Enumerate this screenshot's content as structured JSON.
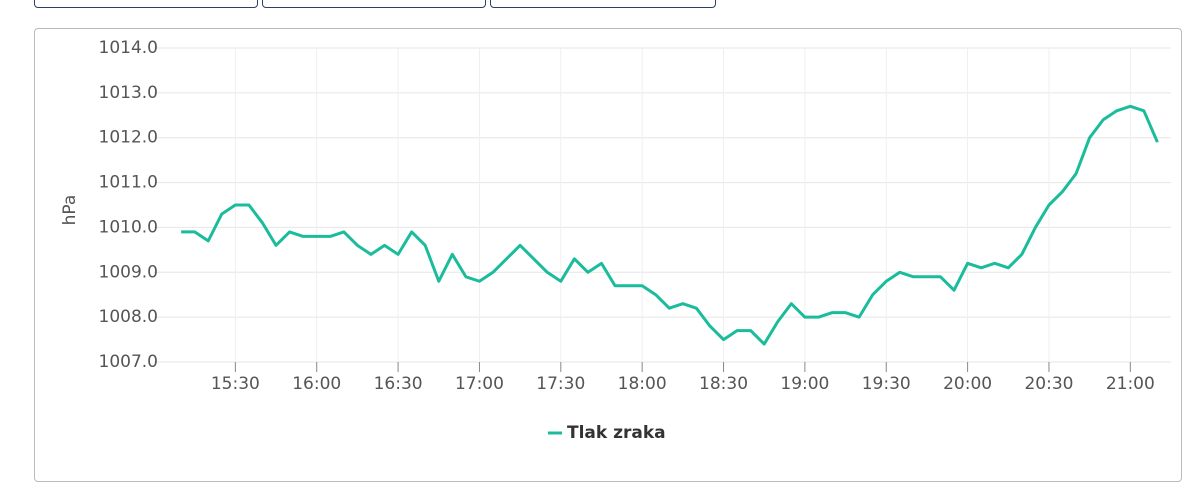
{
  "chart_data": {
    "type": "line",
    "y_label": "hPa",
    "x": [
      "15:10",
      "15:15",
      "15:20",
      "15:25",
      "15:30",
      "15:35",
      "15:40",
      "15:45",
      "15:50",
      "15:55",
      "16:00",
      "16:05",
      "16:10",
      "16:15",
      "16:20",
      "16:25",
      "16:30",
      "16:35",
      "16:40",
      "16:45",
      "16:50",
      "16:55",
      "17:00",
      "17:05",
      "17:10",
      "17:15",
      "17:20",
      "17:25",
      "17:30",
      "17:35",
      "17:40",
      "17:45",
      "17:50",
      "17:55",
      "18:00",
      "18:05",
      "18:10",
      "18:15",
      "18:20",
      "18:25",
      "18:30",
      "18:35",
      "18:40",
      "18:45",
      "18:50",
      "18:55",
      "19:00",
      "19:05",
      "19:10",
      "19:15",
      "19:20",
      "19:25",
      "19:30",
      "19:35",
      "19:40",
      "19:45",
      "19:50",
      "19:55",
      "20:00",
      "20:05",
      "20:10",
      "20:15",
      "20:20",
      "20:25",
      "20:30",
      "20:35",
      "20:40",
      "20:45",
      "20:50",
      "20:55",
      "21:00",
      "21:05",
      "21:10"
    ],
    "series": [
      {
        "name": "Tlak zraka",
        "color": "#1abc9c",
        "values": [
          1009.9,
          1009.9,
          1009.7,
          1010.3,
          1010.5,
          1010.5,
          1010.1,
          1009.6,
          1009.9,
          1009.8,
          1009.8,
          1009.8,
          1009.9,
          1009.6,
          1009.4,
          1009.6,
          1009.4,
          1009.9,
          1009.6,
          1008.8,
          1009.4,
          1008.9,
          1008.8,
          1009.0,
          1009.3,
          1009.6,
          1009.3,
          1009.0,
          1008.8,
          1009.3,
          1009.0,
          1009.2,
          1008.7,
          1008.7,
          1008.7,
          1008.5,
          1008.2,
          1008.3,
          1008.2,
          1007.8,
          1007.5,
          1007.7,
          1007.7,
          1007.4,
          1007.9,
          1008.3,
          1008.0,
          1008.0,
          1008.1,
          1008.1,
          1008.0,
          1008.5,
          1008.8,
          1009.0,
          1008.9,
          1008.9,
          1008.9,
          1008.6,
          1009.2,
          1009.1,
          1009.2,
          1009.1,
          1009.4,
          1010.0,
          1010.5,
          1010.8,
          1011.2,
          1012.0,
          1012.4,
          1012.6,
          1012.7,
          1012.6,
          1011.9
        ]
      }
    ],
    "xlim": [
      "15:00",
      "21:15"
    ],
    "xticks": [
      "15:30",
      "16:00",
      "16:30",
      "17:00",
      "17:30",
      "18:00",
      "18:30",
      "19:00",
      "19:30",
      "20:00",
      "20:30",
      "21:00"
    ],
    "ylim": [
      1007,
      1014
    ],
    "yticks": [
      {
        "value": 1007,
        "label": "1007.0"
      },
      {
        "value": 1008,
        "label": "1008.0"
      },
      {
        "value": 1009,
        "label": "1009.0"
      },
      {
        "value": 1010,
        "label": "1010.0"
      },
      {
        "value": 1011,
        "label": "1011.0"
      },
      {
        "value": 1012,
        "label": "1012.0"
      },
      {
        "value": 1013,
        "label": "1013.0"
      },
      {
        "value": 1014,
        "label": "1014.0"
      }
    ],
    "grid": true
  }
}
